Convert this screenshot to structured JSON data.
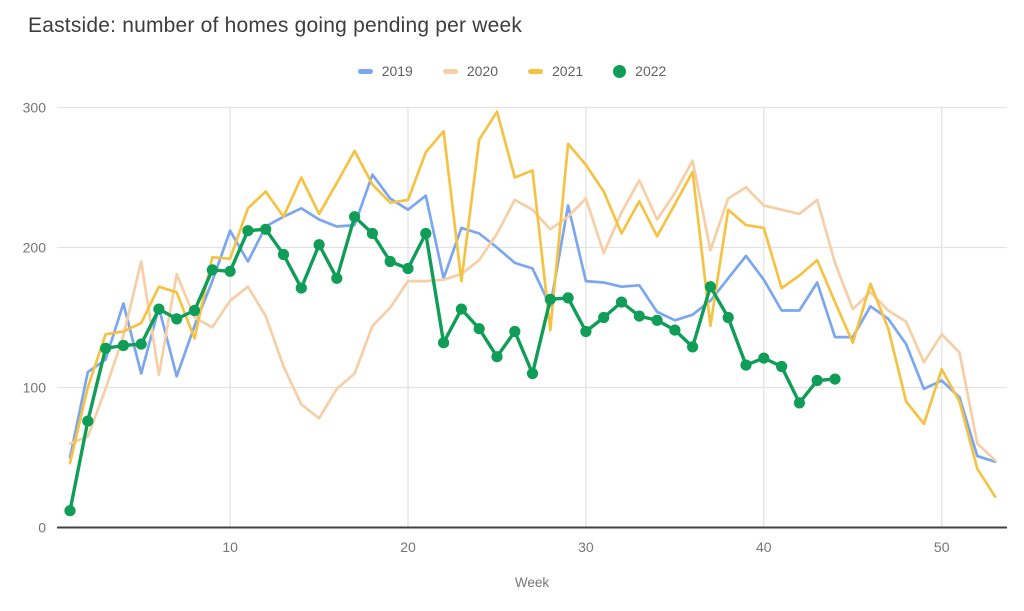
{
  "title": "Eastside: number of homes going pending per week",
  "legend": {
    "items": [
      {
        "label": "2019",
        "color": "#7ba6f0",
        "marker": "dash"
      },
      {
        "label": "2020",
        "color": "#f6cfa6",
        "marker": "dash"
      },
      {
        "label": "2021",
        "color": "#f5c344",
        "marker": "dash"
      },
      {
        "label": "2022",
        "color": "#109d58",
        "marker": "circle"
      }
    ]
  },
  "axes": {
    "xlabel": "Week",
    "x_ticks": [
      10,
      20,
      30,
      40,
      50
    ],
    "y_ticks": [
      0,
      100,
      200,
      300
    ]
  },
  "colors": {
    "grid": "#e3e3e3",
    "baseline": "#424242",
    "tick_text": "#757575",
    "title_text": "#3d3d3d",
    "legend_text": "#616161"
  },
  "chart_data": {
    "type": "line",
    "title": "Eastside: number of homes going pending per week",
    "xlabel": "Week",
    "ylabel": "",
    "x_range": [
      1,
      53
    ],
    "ylim": [
      0,
      300
    ],
    "xticks": [
      10,
      20,
      30,
      40,
      50
    ],
    "yticks": [
      0,
      100,
      200,
      300
    ],
    "grid": true,
    "legend_position": "top",
    "series": [
      {
        "name": "2019",
        "color": "#7ba6f0",
        "marker": "none",
        "values": [
          50,
          111,
          120,
          160,
          110,
          157,
          108,
          144,
          176,
          212,
          190,
          215,
          222,
          228,
          220,
          215,
          216,
          252,
          235,
          227,
          237,
          178,
          214,
          210,
          200,
          189,
          185,
          158,
          230,
          176,
          175,
          172,
          173,
          154,
          148,
          152,
          162,
          178,
          194,
          177,
          155,
          155,
          175,
          136,
          136,
          158,
          149,
          131,
          99,
          105,
          93,
          51,
          47
        ]
      },
      {
        "name": "2020",
        "color": "#f6cfa6",
        "marker": "none",
        "values": [
          60,
          65,
          99,
          137,
          190,
          109,
          181,
          150,
          143,
          162,
          172,
          151,
          115,
          88,
          78,
          99,
          110,
          144,
          157,
          176,
          176,
          177,
          181,
          191,
          210,
          234,
          227,
          213,
          222,
          235,
          196,
          225,
          248,
          220,
          239,
          262,
          198,
          235,
          243,
          230,
          227,
          224,
          234,
          189,
          156,
          168,
          155,
          147,
          118,
          138,
          125,
          60,
          48
        ]
      },
      {
        "name": "2021",
        "color": "#f5c344",
        "marker": "none",
        "values": [
          46,
          100,
          138,
          140,
          146,
          172,
          168,
          135,
          193,
          192,
          228,
          240,
          222,
          250,
          224,
          246,
          269,
          245,
          232,
          234,
          268,
          283,
          176,
          277,
          297,
          250,
          255,
          141,
          274,
          259,
          240,
          210,
          233,
          208,
          231,
          254,
          144,
          227,
          216,
          214,
          171,
          180,
          191,
          161,
          132,
          174,
          142,
          90,
          74,
          113,
          90,
          42,
          22
        ]
      },
      {
        "name": "2022",
        "color": "#109d58",
        "marker": "circle",
        "values": [
          12,
          76,
          128,
          130,
          131,
          156,
          149,
          155,
          184,
          183,
          212,
          213,
          195,
          171,
          202,
          178,
          222,
          210,
          190,
          185,
          210,
          132,
          156,
          142,
          122,
          140,
          110,
          163,
          164,
          140,
          150,
          161,
          151,
          148,
          141,
          129,
          172,
          150,
          116,
          121,
          115,
          89,
          105,
          106
        ]
      }
    ]
  }
}
